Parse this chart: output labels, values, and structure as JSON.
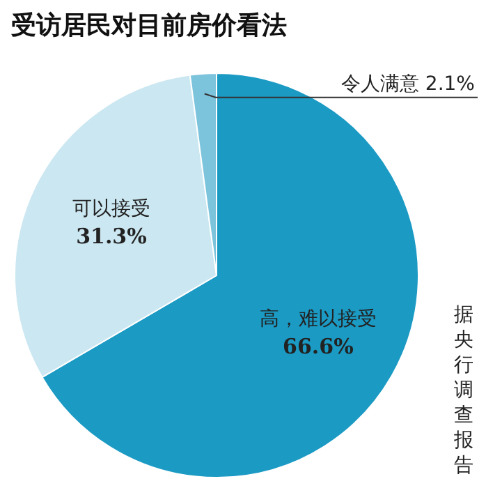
{
  "chart_data": {
    "type": "pie",
    "title": "受访居民对目前房价看法",
    "categories": [
      "高，难以接受",
      "可以接受",
      "令人满意"
    ],
    "values": [
      66.6,
      31.3,
      2.1
    ],
    "value_labels": [
      "66.6%",
      "31.3%",
      "2.1%"
    ],
    "colors": [
      "#1b9ac4",
      "#cbe7f1",
      "#7cc3dc"
    ],
    "annotations": [
      "据央行调查报告"
    ]
  }
}
